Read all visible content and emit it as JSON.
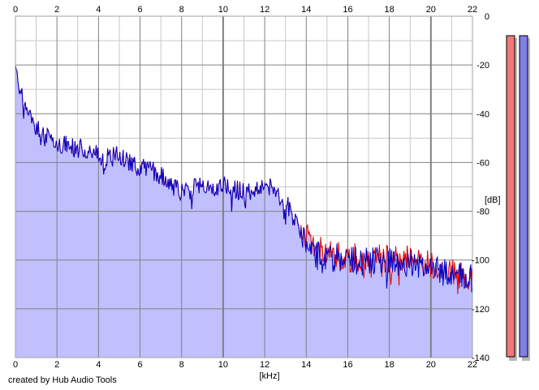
{
  "footer": {
    "credit": "created by Hub Audio Tools"
  },
  "chart_data": {
    "type": "area",
    "xlabel": "[kHz]",
    "ylabel": "[dB]",
    "xlim": [
      0,
      22
    ],
    "ylim": [
      -140,
      0
    ],
    "x_ticks": [
      0,
      2,
      4,
      6,
      8,
      10,
      12,
      14,
      16,
      18,
      20,
      22
    ],
    "y_ticks": [
      0,
      -20,
      -40,
      -60,
      -80,
      -100,
      -120,
      -140
    ],
    "y_tick_labels": [
      "0",
      "-20",
      "-40",
      "-60",
      "-80",
      "-100",
      "-120",
      "-140"
    ],
    "grid": true,
    "colors": {
      "fill": "#c0c0ff",
      "left_channel": "#e00000",
      "right_channel": "#0000c8",
      "grid_major": "#808080",
      "grid_minor": "#c8c8c8",
      "meter_left": "#f07878",
      "meter_right": "#8080e8"
    },
    "series": [
      {
        "channel": "left",
        "x": [
          0,
          0.1,
          0.3,
          0.5,
          0.8,
          1.0,
          1.3,
          1.6,
          2.0,
          2.5,
          3.0,
          3.5,
          4.0,
          4.5,
          5.0,
          5.5,
          6.0,
          6.5,
          7.0,
          7.5,
          8.0,
          8.5,
          9.0,
          9.5,
          10.0,
          10.5,
          11.0,
          11.5,
          12.0,
          12.5,
          13.0,
          13.5,
          14.0,
          14.2,
          14.5,
          15.0,
          15.5,
          16.0,
          16.5,
          17.0,
          17.5,
          18.0,
          18.5,
          19.0,
          19.5,
          20.0,
          20.5,
          21.0,
          21.5,
          22.0
        ],
        "values": [
          -20,
          -24,
          -33,
          -38,
          -43,
          -45,
          -47,
          -50,
          -52,
          -53,
          -54,
          -55,
          -57,
          -58,
          -57,
          -60,
          -62,
          -63,
          -65,
          -69,
          -72,
          -71,
          -69,
          -70,
          -69,
          -71,
          -72,
          -71,
          -69,
          -72,
          -76,
          -84,
          -90,
          -95,
          -96,
          -97,
          -98,
          -99,
          -99,
          -100,
          -99,
          -100,
          -100,
          -100,
          -101,
          -102,
          -104,
          -105,
          -106,
          -107
        ]
      },
      {
        "channel": "right",
        "x": [
          0,
          0.1,
          0.3,
          0.5,
          0.8,
          1.0,
          1.3,
          1.6,
          2.0,
          2.5,
          3.0,
          3.5,
          4.0,
          4.5,
          5.0,
          5.5,
          6.0,
          6.5,
          7.0,
          7.5,
          8.0,
          8.5,
          9.0,
          9.5,
          10.0,
          10.5,
          11.0,
          11.5,
          12.0,
          12.5,
          13.0,
          13.5,
          14.0,
          14.2,
          14.5,
          15.0,
          15.5,
          16.0,
          16.5,
          17.0,
          17.5,
          18.0,
          18.5,
          19.0,
          19.5,
          20.0,
          20.5,
          21.0,
          21.5,
          22.0
        ],
        "values": [
          -20,
          -24,
          -33,
          -38,
          -43,
          -45,
          -47,
          -50,
          -52,
          -53,
          -54,
          -55,
          -57,
          -58,
          -57,
          -60,
          -62,
          -63,
          -65,
          -69,
          -72,
          -71,
          -69,
          -70,
          -69,
          -71,
          -72,
          -71,
          -69,
          -72,
          -76,
          -84,
          -92,
          -97,
          -98,
          -99,
          -99,
          -100,
          -100,
          -101,
          -100,
          -101,
          -101,
          -101,
          -102,
          -103,
          -105,
          -106,
          -106,
          -108
        ]
      }
    ],
    "level_meters": [
      {
        "channel": "left",
        "level_fraction": 1.0
      },
      {
        "channel": "right",
        "level_fraction": 1.0
      }
    ]
  }
}
